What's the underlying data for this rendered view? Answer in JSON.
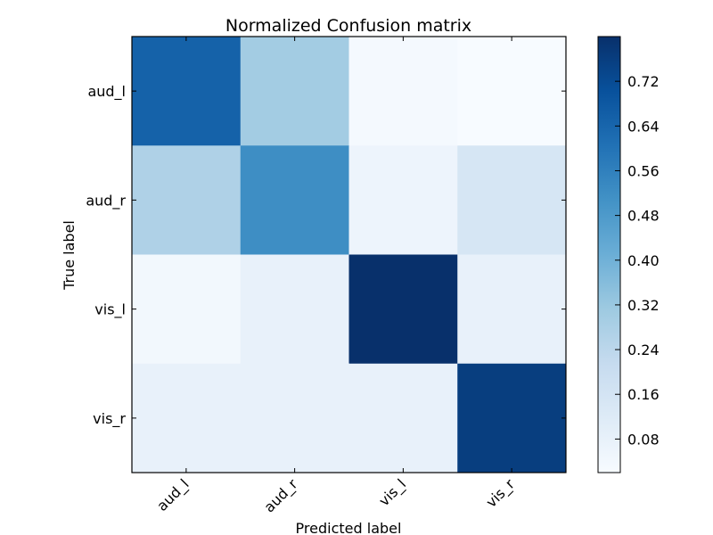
{
  "chart_data": {
    "type": "heatmap",
    "title": "Normalized Confusion matrix",
    "xlabel": "Predicted label",
    "ylabel": "True label",
    "x_categories": [
      "aud_l",
      "aud_r",
      "vis_l",
      "vis_r"
    ],
    "y_categories": [
      "aud_l",
      "aud_r",
      "vis_l",
      "vis_r"
    ],
    "values": [
      [
        0.65,
        0.3,
        0.03,
        0.02
      ],
      [
        0.27,
        0.52,
        0.06,
        0.15
      ],
      [
        0.04,
        0.08,
        0.8,
        0.08
      ],
      [
        0.08,
        0.08,
        0.08,
        0.76
      ]
    ],
    "colormap": "Blues",
    "vmin": 0.02,
    "vmax": 0.8,
    "colorbar_ticks": [
      "0.08",
      "0.16",
      "0.24",
      "0.32",
      "0.40",
      "0.48",
      "0.56",
      "0.64",
      "0.72"
    ],
    "grid": false
  }
}
